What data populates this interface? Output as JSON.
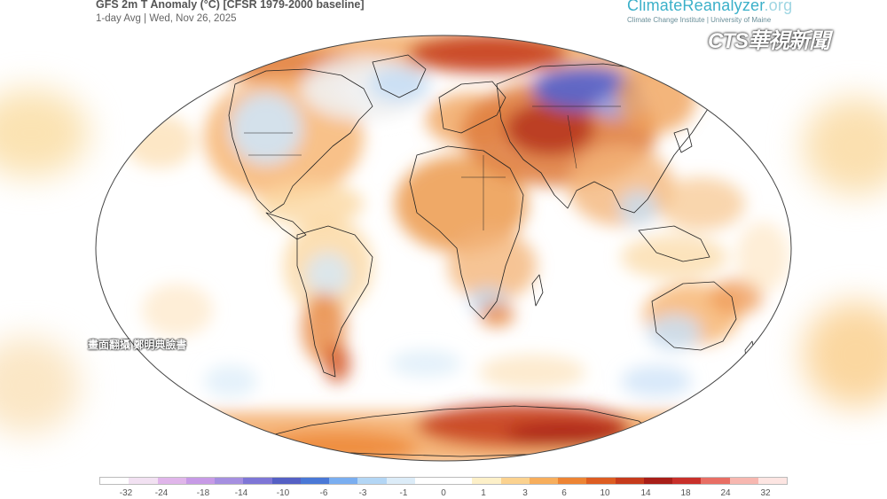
{
  "header": {
    "title": "GFS 2m T Anomaly (°C) [CFSR 1979-2000 baseline]",
    "subtitle": "1-day Avg | Wed, Nov 26, 2025"
  },
  "brand": {
    "name": "ClimateReanalyzer",
    "suffix": ".org",
    "affiliation": "Climate Change Institute | University of Maine"
  },
  "broadcast": {
    "logo": "CTS華視新聞",
    "caption": "畫面翻攝 鄭明典臉書"
  },
  "legend": {
    "tick_labels": [
      "-32",
      "-24",
      "-18",
      "-14",
      "-10",
      "-6",
      "-3",
      "-1",
      "0",
      "1",
      "3",
      "6",
      "10",
      "14",
      "18",
      "24",
      "32"
    ],
    "colors": [
      "#ffffff",
      "#f2e1f2",
      "#e0b5ea",
      "#c79ae6",
      "#a58fe0",
      "#7e76d6",
      "#5560c4",
      "#4a78d6",
      "#7aaef0",
      "#b3d6f5",
      "#dcecf8",
      "#ffffff",
      "#ffffff",
      "#fdf0c8",
      "#fbd28f",
      "#f7ae5c",
      "#ed8434",
      "#dd5d22",
      "#c63b1c",
      "#a81e18",
      "#c8302a",
      "#e86e64",
      "#f7b7b0",
      "#fde5e2"
    ]
  },
  "colors": {
    "ocean": "#ffffff",
    "warm_light": "#fbd7a0",
    "warm": "#f2a357",
    "hot": "#d35a22",
    "very_hot": "#b32a1e",
    "cool_light": "#d8ebf8",
    "cool": "#9cc6ee",
    "cold": "#5a64c8",
    "coastline": "#222222",
    "brand": "#3bb0c9"
  }
}
